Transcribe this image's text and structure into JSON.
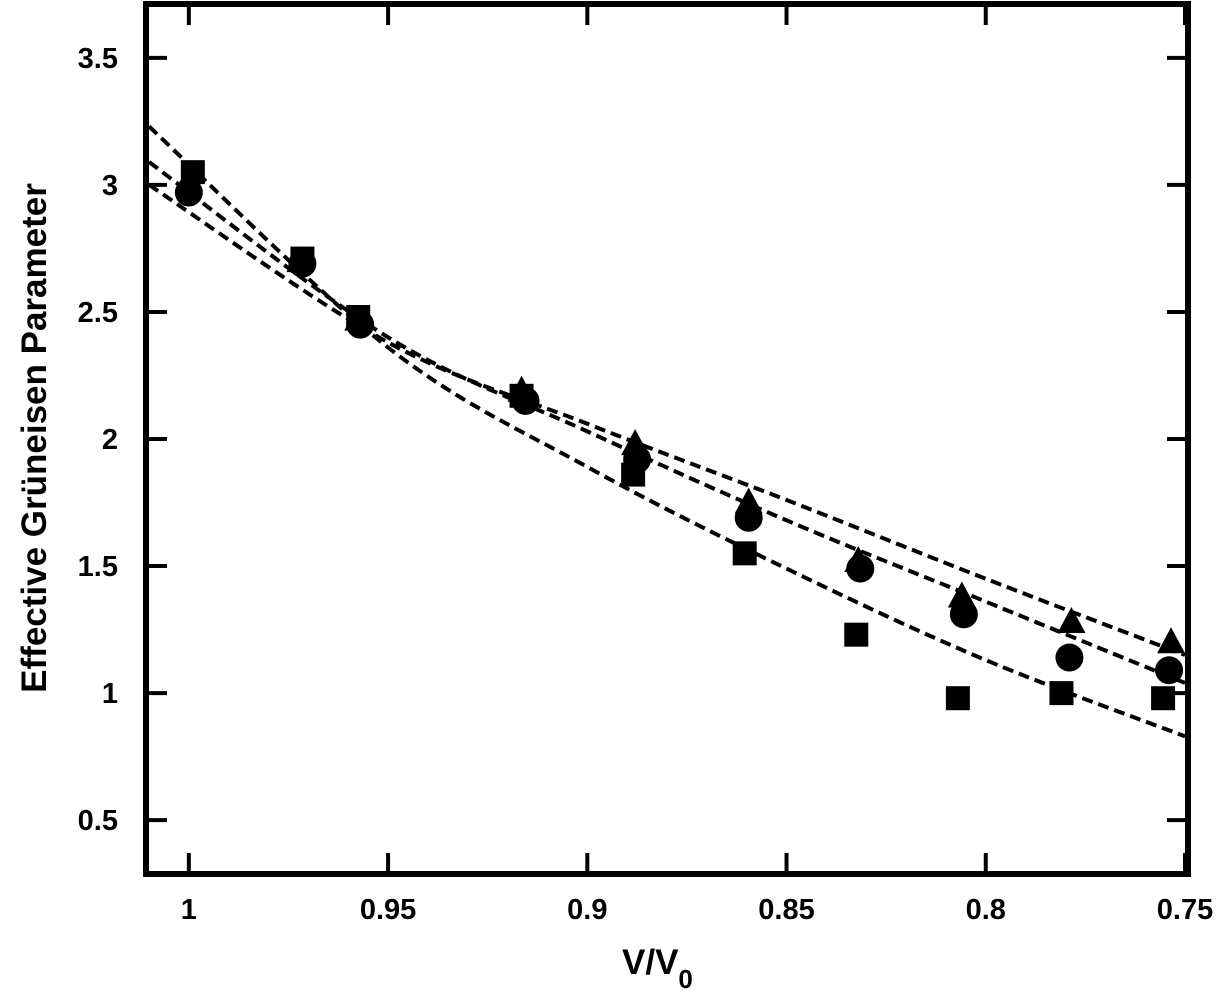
{
  "chart_data": {
    "type": "scatter",
    "title": "",
    "xlabel": "V/V",
    "xlabel_subscript": "0",
    "ylabel": "Effective Grüneisen Parameter",
    "xlim": [
      1.01,
      0.75
    ],
    "ylim": [
      0.3,
      3.7
    ],
    "x_reversed": true,
    "grid": false,
    "legend": "none",
    "x_ticks": [
      1,
      0.95,
      0.9,
      0.85,
      0.8,
      0.75
    ],
    "x_tick_labels": [
      "1",
      "0.95",
      "0.9",
      "0.85",
      "0.8",
      "0.75"
    ],
    "y_ticks": [
      0.5,
      1,
      1.5,
      2,
      2.5,
      3,
      3.5
    ],
    "y_tick_labels": [
      "0.5",
      "1",
      "1.5",
      "2",
      "2.5",
      "3",
      "3.5"
    ],
    "series": [
      {
        "marker": "triangle",
        "points": [
          [
            1.0,
            3.02
          ],
          [
            0.972,
            2.7
          ],
          [
            0.9575,
            2.47
          ],
          [
            0.9165,
            2.19
          ],
          [
            0.888,
            1.98
          ],
          [
            0.8595,
            1.75
          ],
          [
            0.832,
            1.52
          ],
          [
            0.806,
            1.38
          ],
          [
            0.7785,
            1.28
          ],
          [
            0.7535,
            1.2
          ]
        ],
        "fit": [
          [
            1.01,
            3.0
          ],
          [
            0.95,
            2.38
          ],
          [
            0.9,
            2.06
          ],
          [
            0.85,
            1.76
          ],
          [
            0.8,
            1.45
          ],
          [
            0.75,
            1.15
          ]
        ]
      },
      {
        "marker": "circle",
        "points": [
          [
            1.0,
            2.97
          ],
          [
            0.9715,
            2.69
          ],
          [
            0.957,
            2.45
          ],
          [
            0.9155,
            2.15
          ],
          [
            0.8875,
            1.92
          ],
          [
            0.8595,
            1.69
          ],
          [
            0.8315,
            1.49
          ],
          [
            0.8055,
            1.31
          ],
          [
            0.779,
            1.14
          ],
          [
            0.754,
            1.09
          ]
        ],
        "fit": [
          [
            1.01,
            3.09
          ],
          [
            0.95,
            2.4
          ],
          [
            0.9,
            2.03
          ],
          [
            0.85,
            1.68
          ],
          [
            0.8,
            1.36
          ],
          [
            0.75,
            1.04
          ]
        ]
      },
      {
        "marker": "square",
        "points": [
          [
            0.999,
            3.05
          ],
          [
            0.9715,
            2.71
          ],
          [
            0.9575,
            2.48
          ],
          [
            0.9165,
            2.17
          ],
          [
            0.8885,
            1.86
          ],
          [
            0.8605,
            1.55
          ],
          [
            0.8325,
            1.23
          ],
          [
            0.807,
            0.98
          ],
          [
            0.781,
            1.0
          ],
          [
            0.7555,
            0.98
          ]
        ],
        "fit": [
          [
            1.01,
            3.23
          ],
          [
            0.95,
            2.36
          ],
          [
            0.9,
            1.89
          ],
          [
            0.85,
            1.49
          ],
          [
            0.8,
            1.13
          ],
          [
            0.75,
            0.83
          ]
        ]
      }
    ]
  }
}
